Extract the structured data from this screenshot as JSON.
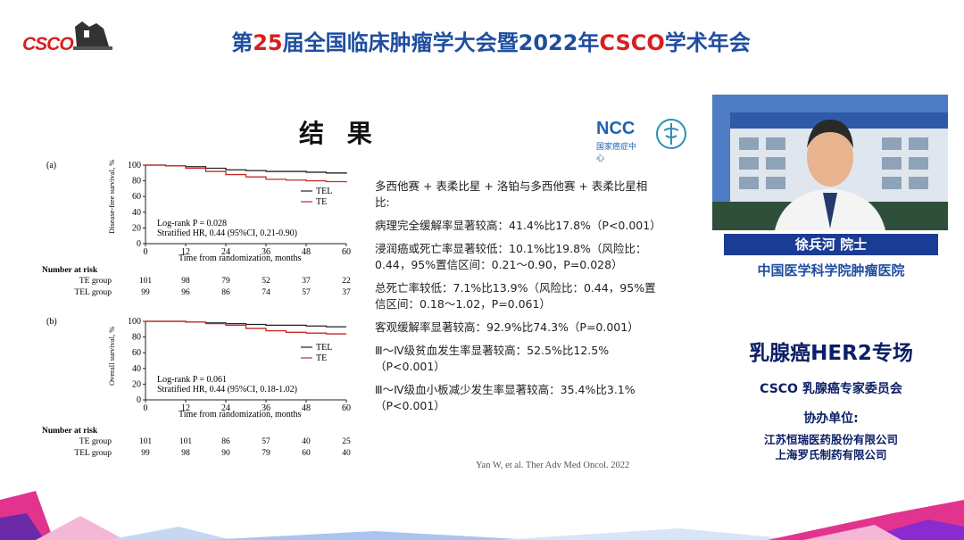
{
  "header": {
    "logo_text": "CSCO",
    "title_prefix": "第",
    "title_number": "25",
    "title_middle": "届全国临床肿瘤学大会暨2022年",
    "title_csco": "CSCO",
    "title_suffix": "学术年会"
  },
  "slide": {
    "title": "结 果",
    "ncc_logo": "NCC",
    "ncc_subtitle": "国家癌症中心",
    "findings": [
      "多西他赛 + 表柔比星 + 洛铂与多西他赛 + 表柔比星相比:",
      "病理完全缓解率显著较高：41.4%比17.8%（P<0.001）",
      "浸润癌或死亡率显著较低：10.1%比19.8%（风险比：0.44，95%置信区间：0.21～0.90，P=0.028）",
      "总死亡率较低：7.1%比13.9%（风险比：0.44，95%置信区间：0.18～1.02，P=0.061）",
      "客观缓解率显著较高：92.9%比74.3%（P=0.001）",
      "Ⅲ～Ⅳ级贫血发生率显著较高：52.5%比12.5%（P<0.001）",
      "Ⅲ～Ⅳ级血小板减少发生率显著较高：35.4%比3.1%（P<0.001）"
    ],
    "citation": "Yan W, et al. Ther Adv Med Oncol. 2022"
  },
  "chart_a": {
    "panel": "(a)",
    "ylabel": "Disease-free survival, %",
    "xlabel": "Time from randomization, months",
    "yticks": [
      "100",
      "80",
      "60",
      "40",
      "20",
      "0"
    ],
    "xticks": [
      "0",
      "12",
      "24",
      "36",
      "48",
      "60"
    ],
    "legend": [
      "TEL",
      "TE"
    ],
    "stat_line1": "Log-rank P = 0.028",
    "stat_line2": "Stratified HR, 0.44 (95%CI, 0.21-0.90)",
    "risk_header": "Number at risk",
    "risk_rows": [
      {
        "group": "TE group",
        "values": [
          "101",
          "98",
          "79",
          "52",
          "37",
          "22"
        ]
      },
      {
        "group": "TEL group",
        "values": [
          "99",
          "96",
          "86",
          "74",
          "57",
          "37"
        ]
      }
    ]
  },
  "chart_b": {
    "panel": "(b)",
    "ylabel": "Overall survival, %",
    "xlabel": "Time from randomization, months",
    "yticks": [
      "100",
      "80",
      "60",
      "40",
      "20",
      "0"
    ],
    "xticks": [
      "0",
      "12",
      "24",
      "36",
      "48",
      "60"
    ],
    "legend": [
      "TEL",
      "TE"
    ],
    "stat_line1": "Log-rank P = 0.061",
    "stat_line2": "Stratified HR, 0.44 (95%CI, 0.18-1.02)",
    "risk_header": "Number at risk",
    "risk_rows": [
      {
        "group": "TE group",
        "values": [
          "101",
          "101",
          "86",
          "57",
          "40",
          "25"
        ]
      },
      {
        "group": "TEL group",
        "values": [
          "99",
          "98",
          "90",
          "79",
          "60",
          "40"
        ]
      }
    ]
  },
  "chart_data": [
    {
      "type": "line",
      "title": "",
      "xlabel": "Time from randomization, months",
      "ylabel": "Disease-free survival, %",
      "xlim": [
        0,
        60
      ],
      "ylim": [
        0,
        100
      ],
      "series": [
        {
          "name": "TEL",
          "color": "#222222",
          "x": [
            0,
            6,
            12,
            18,
            24,
            30,
            36,
            42,
            48,
            54,
            60
          ],
          "y": [
            100,
            99,
            98,
            96,
            94,
            93,
            92,
            92,
            91,
            90,
            89
          ]
        },
        {
          "name": "TE",
          "color": "#c62828",
          "x": [
            0,
            6,
            12,
            18,
            24,
            30,
            36,
            42,
            48,
            54,
            60
          ],
          "y": [
            100,
            99,
            96,
            92,
            88,
            85,
            82,
            81,
            80,
            79,
            78
          ]
        }
      ]
    },
    {
      "type": "line",
      "title": "",
      "xlabel": "Time from randomization, months",
      "ylabel": "Overall survival, %",
      "xlim": [
        0,
        60
      ],
      "ylim": [
        0,
        100
      ],
      "series": [
        {
          "name": "TEL",
          "color": "#222222",
          "x": [
            0,
            6,
            12,
            18,
            24,
            30,
            36,
            42,
            48,
            54,
            60
          ],
          "y": [
            100,
            100,
            99,
            98,
            97,
            96,
            95,
            95,
            94,
            93,
            93
          ]
        },
        {
          "name": "TE",
          "color": "#c62828",
          "x": [
            0,
            6,
            12,
            18,
            24,
            30,
            36,
            42,
            48,
            54,
            60
          ],
          "y": [
            100,
            100,
            99,
            97,
            95,
            91,
            88,
            86,
            85,
            84,
            84
          ]
        }
      ]
    }
  ],
  "sidebar": {
    "speaker_name": "徐兵河  院士",
    "speaker_org": "中国医学科学院肿瘤医院",
    "session_title": "乳腺癌HER2专场",
    "committee": "CSCO 乳腺癌专家委员会",
    "coorg_label": "协办单位:",
    "coorganizers": [
      "江苏恒瑞医药股份有限公司",
      "上海罗氏制药有限公司"
    ]
  },
  "colors": {
    "brand_blue": "#1f4ea0",
    "brand_red": "#d81e1e",
    "navy": "#0b1f66"
  }
}
